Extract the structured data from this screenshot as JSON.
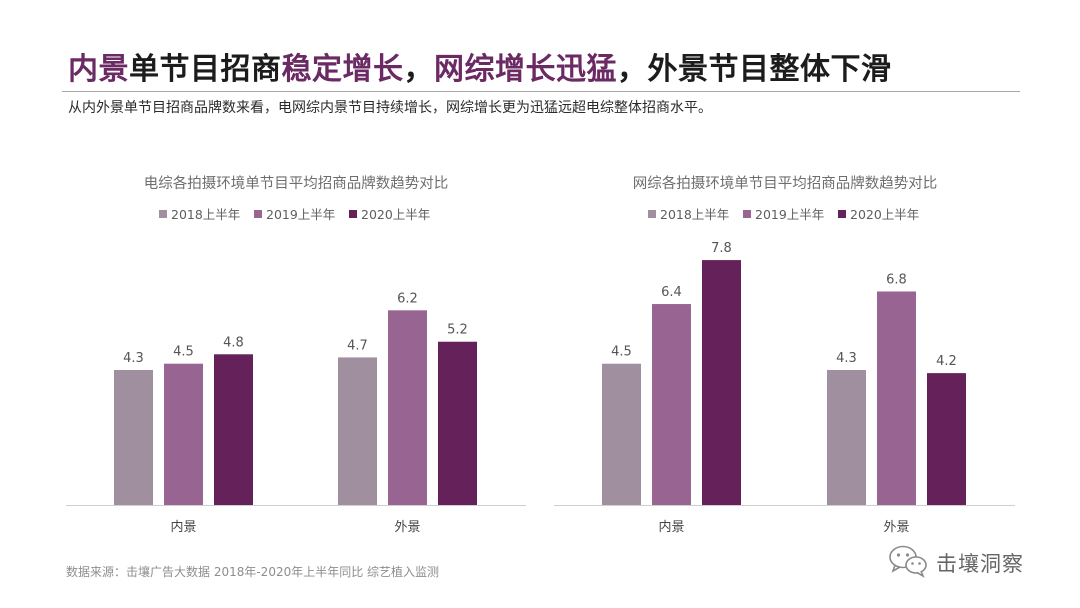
{
  "title": {
    "part1": "内景",
    "part2": "单节目招商",
    "part3": "稳定增长",
    "part4": "，",
    "part5": "网综增长迅猛",
    "part6": "，外景节目整体下滑"
  },
  "subtitle": "从内外景单节目招商品牌数来看，电网综内景节目持续增长，网综增长更为迅猛远超电综整体招商水平。",
  "source": "数据来源：击壤广告大数据 2018年-2020年上半年同比 综艺植入监测",
  "watermark": {
    "text": "击壤洞察",
    "icon": "wechat-icon"
  },
  "colors": {
    "accent": "#6b2a63",
    "s2018": "#a0909f",
    "s2019": "#986593",
    "s2020": "#65225a"
  },
  "chart_data": [
    {
      "type": "bar",
      "title": "电综各拍摄环境单节目平均招商品牌数趋势对比",
      "categories": [
        "内景",
        "外景"
      ],
      "series": [
        {
          "name": "2018上半年",
          "values": [
            4.3,
            4.7
          ]
        },
        {
          "name": "2019上半年",
          "values": [
            4.5,
            6.2
          ]
        },
        {
          "name": "2020上半年",
          "values": [
            4.8,
            5.2
          ]
        }
      ],
      "legend": "top",
      "grid": false,
      "ylim": [
        0,
        8.6
      ]
    },
    {
      "type": "bar",
      "title": "网综各拍摄环境单节目平均招商品牌数趋势对比",
      "categories": [
        "内景",
        "外景"
      ],
      "series": [
        {
          "name": "2018上半年",
          "values": [
            4.5,
            4.3
          ]
        },
        {
          "name": "2019上半年",
          "values": [
            6.4,
            6.8
          ]
        },
        {
          "name": "2020上半年",
          "values": [
            7.8,
            4.2
          ]
        }
      ],
      "legend": "top",
      "grid": false,
      "ylim": [
        0,
        8.6
      ]
    }
  ]
}
